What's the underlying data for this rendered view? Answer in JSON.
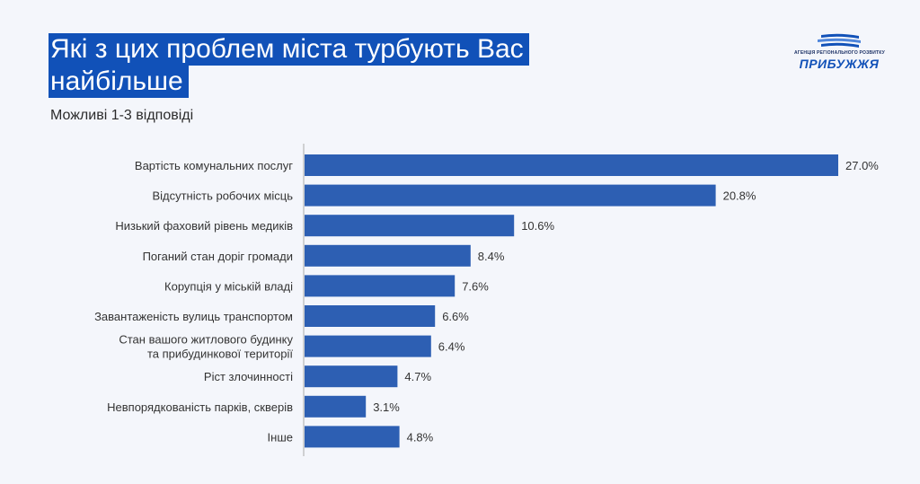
{
  "title_lines": [
    "Які з цих проблем міста турбують Вас",
    "найбільше"
  ],
  "subtitle": "Можливі 1-3 відповіді",
  "logo": {
    "small_text": "АГЕНЦІЯ РЕГІОНАЛЬНОГО РОЗВИТКУ",
    "big_text": "ПРИБУЖЖЯ",
    "colors": [
      "#1151b8",
      "#6fa0e6"
    ]
  },
  "colors": {
    "bar": "#2d5fb3",
    "axis": "#aaaaaa",
    "title_bg": "#1151b8"
  },
  "chart_data": {
    "type": "bar",
    "orientation": "horizontal",
    "categories": [
      [
        "Вартість комунальних послуг"
      ],
      [
        "Відсутність робочих місць"
      ],
      [
        "Низький фаховий рівень медиків"
      ],
      [
        "Поганий стан доріг громади"
      ],
      [
        "Корупція у міській владі"
      ],
      [
        "Завантаженість вулиць транспортом"
      ],
      [
        "Стан вашого житлового будинку",
        "та прибудинкової території"
      ],
      [
        "Ріст злочинності"
      ],
      [
        "Невпорядкованість парків, скверів"
      ],
      [
        "Інше"
      ]
    ],
    "values": [
      27.0,
      20.8,
      10.6,
      8.4,
      7.6,
      6.6,
      6.4,
      4.7,
      3.1,
      4.8
    ],
    "value_labels": [
      "27.0%",
      "20.8%",
      "10.6%",
      "8.4%",
      "7.6%",
      "6.6%",
      "6.4%",
      "4.7%",
      "3.1%",
      "4.8%"
    ],
    "xlim": [
      0,
      27.0
    ],
    "grid": false,
    "legend": "none"
  }
}
